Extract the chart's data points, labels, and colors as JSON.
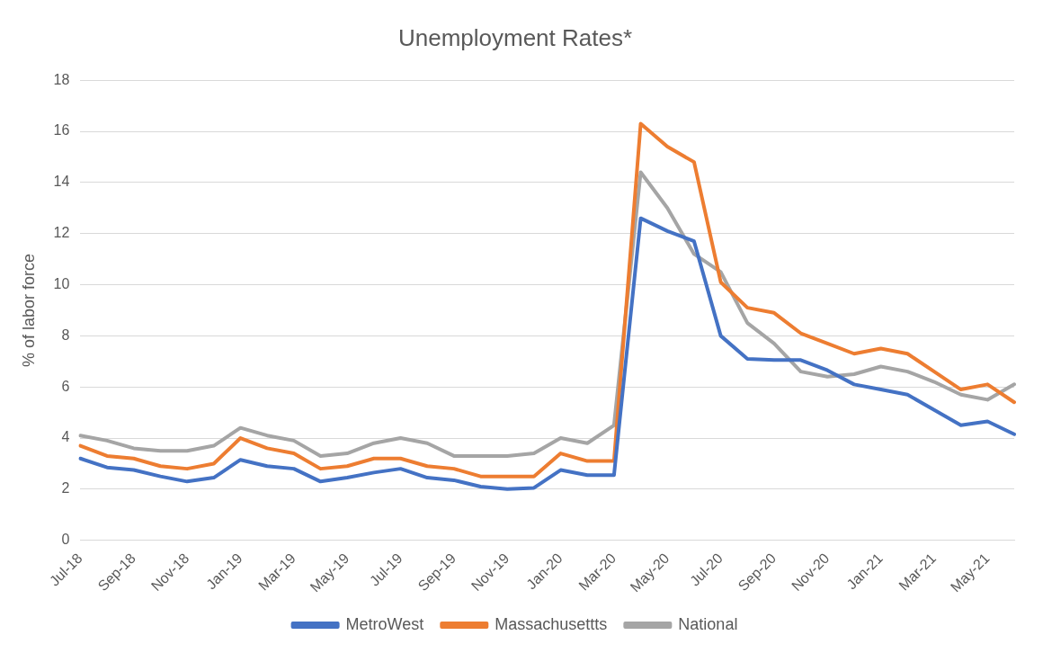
{
  "chart_data": {
    "type": "line",
    "title": "Unemployment Rates*",
    "ylabel": "% of labor force",
    "categories": [
      "Jul-18",
      null,
      "Sep-18",
      null,
      "Nov-18",
      null,
      "Jan-19",
      null,
      "Mar-19",
      null,
      "May-19",
      null,
      "Jul-19",
      null,
      "Sep-19",
      null,
      "Nov-19",
      null,
      "Jan-20",
      null,
      "Mar-20",
      null,
      "May-20",
      null,
      "Jul-20",
      null,
      "Sep-20",
      null,
      "Nov-20",
      null,
      "Jan-21",
      null,
      "Mar-21",
      null,
      "May-21",
      null
    ],
    "series": [
      {
        "name": "MetroWest",
        "color": "#4472c4",
        "values": [
          3.2,
          2.85,
          2.75,
          2.5,
          2.3,
          2.45,
          3.15,
          2.9,
          2.8,
          2.3,
          2.45,
          2.65,
          2.8,
          2.45,
          2.35,
          2.1,
          2.0,
          2.05,
          2.75,
          2.55,
          2.55,
          12.6,
          12.1,
          11.7,
          8.0,
          7.1,
          7.05,
          7.05,
          6.65,
          6.1,
          5.9,
          5.7,
          5.1,
          4.5,
          4.65,
          4.15
        ]
      },
      {
        "name": "Massachusettts",
        "color": "#ed7d31",
        "values": [
          3.7,
          3.3,
          3.2,
          2.9,
          2.8,
          3.0,
          4.0,
          3.6,
          3.4,
          2.8,
          2.9,
          3.2,
          3.2,
          2.9,
          2.8,
          2.5,
          2.5,
          2.5,
          3.4,
          3.1,
          3.1,
          16.3,
          15.4,
          14.8,
          10.1,
          9.1,
          8.9,
          8.1,
          7.7,
          7.3,
          7.5,
          7.3,
          6.6,
          5.9,
          6.1,
          5.4
        ]
      },
      {
        "name": "National",
        "color": "#a5a5a5",
        "values": [
          4.1,
          3.9,
          3.6,
          3.5,
          3.5,
          3.7,
          4.4,
          4.1,
          3.9,
          3.3,
          3.4,
          3.8,
          4.0,
          3.8,
          3.3,
          3.3,
          3.3,
          3.4,
          4.0,
          3.8,
          4.5,
          14.4,
          13.0,
          11.2,
          10.5,
          8.5,
          7.7,
          6.6,
          6.4,
          6.5,
          6.8,
          6.6,
          6.2,
          5.7,
          5.5,
          6.1
        ]
      }
    ],
    "ylim": [
      0,
      18
    ],
    "yticks": [
      0,
      2,
      4,
      6,
      8,
      10,
      12,
      14,
      16,
      18
    ],
    "grid": "y",
    "legend": "bottom",
    "marker": "none",
    "line_style": "solid"
  }
}
